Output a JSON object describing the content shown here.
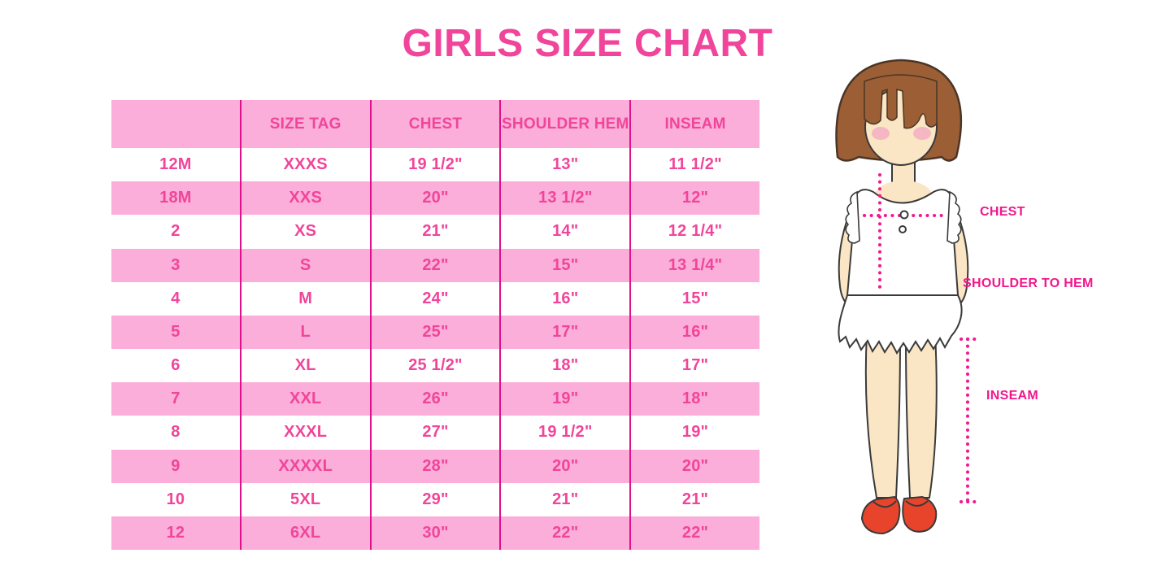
{
  "title": "GIRLS SIZE CHART",
  "figure": {
    "chest_label": "CHEST",
    "shoulder_to_hem_label": "SHOULDER TO HEM",
    "inseam_label": "INSEAM"
  },
  "colors": {
    "title_pink": "#F0459A",
    "row_band_pink": "#FBAED9",
    "column_separator_magenta": "#E0118A",
    "dotted_measure_magenta": "#F2198D",
    "hair_brown": "#9C5F35",
    "skin_tone": "#FAE5C4",
    "blush_pink": "#F5B7C3",
    "shoe_red": "#E8442C"
  },
  "chart_data": {
    "type": "table",
    "title": "GIRLS SIZE CHART",
    "columns": [
      "",
      "SIZE TAG",
      "CHEST",
      "SHOULDER HEM",
      "INSEAM"
    ],
    "rows": [
      [
        "12M",
        "XXXS",
        "19 1/2\"",
        "13\"",
        "11 1/2\""
      ],
      [
        "18M",
        "XXS",
        "20\"",
        "13 1/2\"",
        "12\""
      ],
      [
        "2",
        "XS",
        "21\"",
        "14\"",
        "12 1/4\""
      ],
      [
        "3",
        "S",
        "22\"",
        "15\"",
        "13 1/4\""
      ],
      [
        "4",
        "M",
        "24\"",
        "16\"",
        "15\""
      ],
      [
        "5",
        "L",
        "25\"",
        "17\"",
        "16\""
      ],
      [
        "6",
        "XL",
        "25 1/2\"",
        "18\"",
        "17\""
      ],
      [
        "7",
        "XXL",
        "26\"",
        "19\"",
        "18\""
      ],
      [
        "8",
        "XXXL",
        "27\"",
        "19 1/2\"",
        "19\""
      ],
      [
        "9",
        "XXXXL",
        "28\"",
        "20\"",
        "20\""
      ],
      [
        "10",
        "5XL",
        "29\"",
        "21\"",
        "21\""
      ],
      [
        "12",
        "6XL",
        "30\"",
        "22\"",
        "22\""
      ]
    ]
  }
}
